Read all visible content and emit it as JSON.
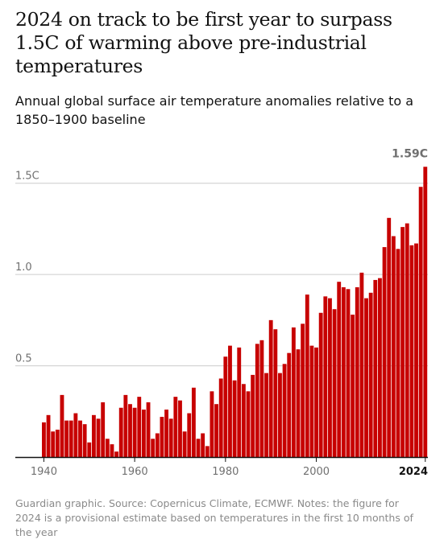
{
  "title": "2024 on track to be first year to surpass 1.5C of warming above pre-industrial temperatures",
  "subtitle": "Annual global surface air temperature anomalies relative to a 1850–1900 baseline",
  "footnote": "Guardian graphic. Source: Copernicus Climate, ECMWF. Notes: the figure for 2024 is a provisional estimate based on temperatures in the first 10 months of the year",
  "colors": {
    "bar": "#c70000",
    "text": "#121212",
    "muted": "#707070",
    "grid": "#cccccc",
    "axis": "#121212"
  },
  "chart_data": {
    "type": "bar",
    "x": [
      1940,
      1941,
      1942,
      1943,
      1944,
      1945,
      1946,
      1947,
      1948,
      1949,
      1950,
      1951,
      1952,
      1953,
      1954,
      1955,
      1956,
      1957,
      1958,
      1959,
      1960,
      1961,
      1962,
      1963,
      1964,
      1965,
      1966,
      1967,
      1968,
      1969,
      1970,
      1971,
      1972,
      1973,
      1974,
      1975,
      1976,
      1977,
      1978,
      1979,
      1980,
      1981,
      1982,
      1983,
      1984,
      1985,
      1986,
      1987,
      1988,
      1989,
      1990,
      1991,
      1992,
      1993,
      1994,
      1995,
      1996,
      1997,
      1998,
      1999,
      2000,
      2001,
      2002,
      2003,
      2004,
      2005,
      2006,
      2007,
      2008,
      2009,
      2010,
      2011,
      2012,
      2013,
      2014,
      2015,
      2016,
      2017,
      2018,
      2019,
      2020,
      2021,
      2022,
      2023,
      2024
    ],
    "values": [
      0.19,
      0.23,
      0.14,
      0.15,
      0.34,
      0.2,
      0.2,
      0.24,
      0.2,
      0.18,
      0.08,
      0.23,
      0.21,
      0.3,
      0.1,
      0.07,
      0.03,
      0.27,
      0.34,
      0.29,
      0.27,
      0.33,
      0.26,
      0.3,
      0.1,
      0.13,
      0.22,
      0.26,
      0.21,
      0.33,
      0.31,
      0.14,
      0.24,
      0.38,
      0.1,
      0.13,
      0.06,
      0.36,
      0.29,
      0.43,
      0.55,
      0.61,
      0.42,
      0.6,
      0.4,
      0.36,
      0.45,
      0.62,
      0.64,
      0.46,
      0.75,
      0.7,
      0.46,
      0.51,
      0.57,
      0.71,
      0.59,
      0.73,
      0.89,
      0.61,
      0.6,
      0.79,
      0.88,
      0.87,
      0.81,
      0.96,
      0.93,
      0.92,
      0.78,
      0.93,
      1.01,
      0.87,
      0.9,
      0.97,
      0.98,
      1.15,
      1.31,
      1.21,
      1.14,
      1.26,
      1.28,
      1.16,
      1.17,
      1.48,
      1.59
    ],
    "ylim": [
      0,
      1.6
    ],
    "yticks": [
      0.5,
      1.0,
      1.5
    ],
    "ytick_labels": [
      "0.5",
      "1.0",
      "1.5C"
    ],
    "xticks": [
      1940,
      1960,
      1980,
      2000,
      2024
    ],
    "xtick_labels": [
      "1940",
      "1960",
      "1980",
      "2000",
      "2024"
    ],
    "highlight_tick": 2024,
    "annotation": {
      "year": 2024,
      "label": "1.59C"
    },
    "grid": true
  }
}
